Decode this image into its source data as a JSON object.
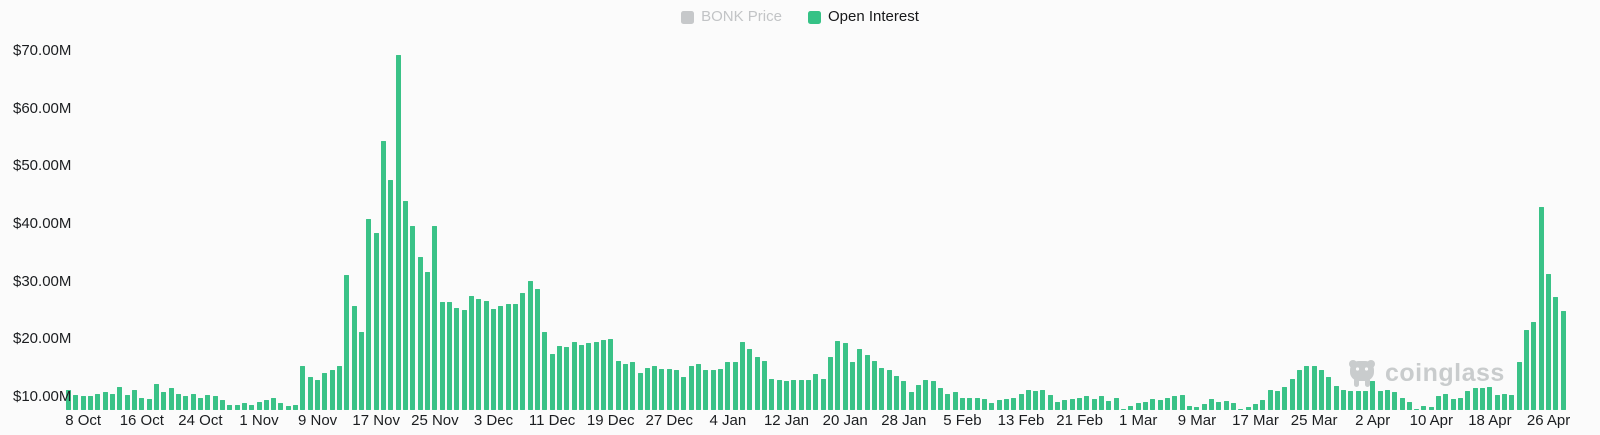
{
  "legend": [
    {
      "label": "BONK Price",
      "swatch_color": "#c6c8ca",
      "text_color": "#c2c4c6",
      "active": false
    },
    {
      "label": "Open Interest",
      "swatch_color": "#35c286",
      "text_color": "#17181a",
      "active": true
    }
  ],
  "watermark": {
    "text": "coinglass",
    "icon": "coinglass-bull-logo",
    "color": "#c9cccd"
  },
  "chart_data": {
    "type": "bar",
    "title": "",
    "series_name": "Open Interest",
    "unit": "USD millions",
    "bar_color": "#3ac287",
    "grid": false,
    "legend_position": "top-center",
    "ylim": [
      7.75,
      71.9
    ],
    "y_ticks": [
      "$70.00M",
      "$60.00M",
      "$50.00M",
      "$40.00M",
      "$30.00M",
      "$20.00M",
      "$10.00M"
    ],
    "y_tick_values": [
      70,
      60,
      50,
      40,
      30,
      20,
      10
    ],
    "x_ticks": [
      {
        "index": 2,
        "label": "8 Oct"
      },
      {
        "index": 10,
        "label": "16 Oct"
      },
      {
        "index": 18,
        "label": "24 Oct"
      },
      {
        "index": 26,
        "label": "1 Nov"
      },
      {
        "index": 34,
        "label": "9 Nov"
      },
      {
        "index": 42,
        "label": "17 Nov"
      },
      {
        "index": 50,
        "label": "25 Nov"
      },
      {
        "index": 58,
        "label": "3 Dec"
      },
      {
        "index": 66,
        "label": "11 Dec"
      },
      {
        "index": 74,
        "label": "19 Dec"
      },
      {
        "index": 82,
        "label": "27 Dec"
      },
      {
        "index": 90,
        "label": "4 Jan"
      },
      {
        "index": 98,
        "label": "12 Jan"
      },
      {
        "index": 106,
        "label": "20 Jan"
      },
      {
        "index": 114,
        "label": "28 Jan"
      },
      {
        "index": 122,
        "label": "5 Feb"
      },
      {
        "index": 130,
        "label": "13 Feb"
      },
      {
        "index": 138,
        "label": "21 Feb"
      },
      {
        "index": 146,
        "label": "1 Mar"
      },
      {
        "index": 154,
        "label": "9 Mar"
      },
      {
        "index": 162,
        "label": "17 Mar"
      },
      {
        "index": 170,
        "label": "25 Mar"
      },
      {
        "index": 178,
        "label": "2 Apr"
      },
      {
        "index": 186,
        "label": "10 Apr"
      },
      {
        "index": 194,
        "label": "18 Apr"
      },
      {
        "index": 202,
        "label": "26 Apr"
      }
    ],
    "values": [
      11.3,
      10.3,
      10.1,
      10.2,
      10.5,
      10.9,
      10.5,
      11.8,
      10.3,
      11.2,
      9.9,
      9.7,
      12.2,
      10.9,
      11.6,
      10.6,
      10.2,
      10.6,
      9.8,
      10.3,
      10.1,
      9.5,
      8.7,
      8.6,
      8.9,
      8.7,
      9.2,
      9.5,
      9.9,
      8.9,
      8.4,
      8.7,
      15.4,
      13.4,
      12.9,
      14.2,
      14.7,
      15.4,
      31.2,
      25.8,
      21.2,
      40.9,
      38.4,
      54.4,
      47.7,
      69.3,
      44.0,
      39.7,
      34.2,
      31.6,
      39.7,
      26.5,
      26.5,
      25.4,
      25.1,
      27.6,
      27.0,
      26.7,
      25.2,
      25.7,
      26.1,
      26.2,
      28.0,
      30.1,
      28.8,
      21.3,
      17.4,
      18.9,
      18.6,
      19.5,
      19.1,
      19.3,
      19.5,
      19.9,
      20.0,
      16.3,
      15.7,
      16.1,
      14.2,
      15.0,
      15.3,
      14.9,
      14.9,
      14.6,
      13.5,
      15.3,
      15.7,
      14.7,
      14.7,
      14.8,
      16.1,
      16.1,
      19.5,
      18.3,
      17.0,
      16.2,
      13.2,
      12.9,
      12.7,
      13.0,
      12.9,
      12.9,
      14.0,
      13.1,
      16.9,
      19.8,
      19.3,
      16.0,
      18.3,
      17.2,
      16.3,
      15.1,
      14.7,
      13.6,
      12.8,
      10.9,
      12.0,
      12.9,
      12.7,
      11.5,
      10.5,
      10.8,
      9.9,
      9.8,
      9.8,
      9.7,
      8.9,
      9.5,
      9.6,
      9.8,
      10.5,
      11.2,
      11.1,
      11.3,
      10.4,
      9.2,
      9.5,
      9.7,
      9.9,
      10.1,
      9.6,
      10.1,
      9.3,
      9.8,
      8.0,
      8.4,
      8.9,
      9.2,
      9.6,
      9.5,
      9.9,
      10.2,
      10.3,
      8.5,
      8.3,
      8.8,
      9.7,
      9.2,
      9.3,
      8.9,
      8.0,
      8.2,
      8.8,
      9.4,
      11.2,
      11.0,
      11.7,
      13.2,
      14.6,
      15.4,
      15.3,
      14.6,
      13.4,
      11.9,
      11.2,
      11.1,
      11.1,
      11.1,
      12.7,
      11.1,
      11.2,
      10.8,
      9.8,
      9.2,
      7.8,
      8.4,
      8.2,
      10.2,
      10.5,
      9.7,
      9.8,
      11.0,
      11.5,
      11.5,
      11.8,
      10.3,
      10.6,
      10.3,
      16.0,
      21.7,
      23.0,
      43.0,
      31.3,
      27.3,
      24.9
    ]
  }
}
